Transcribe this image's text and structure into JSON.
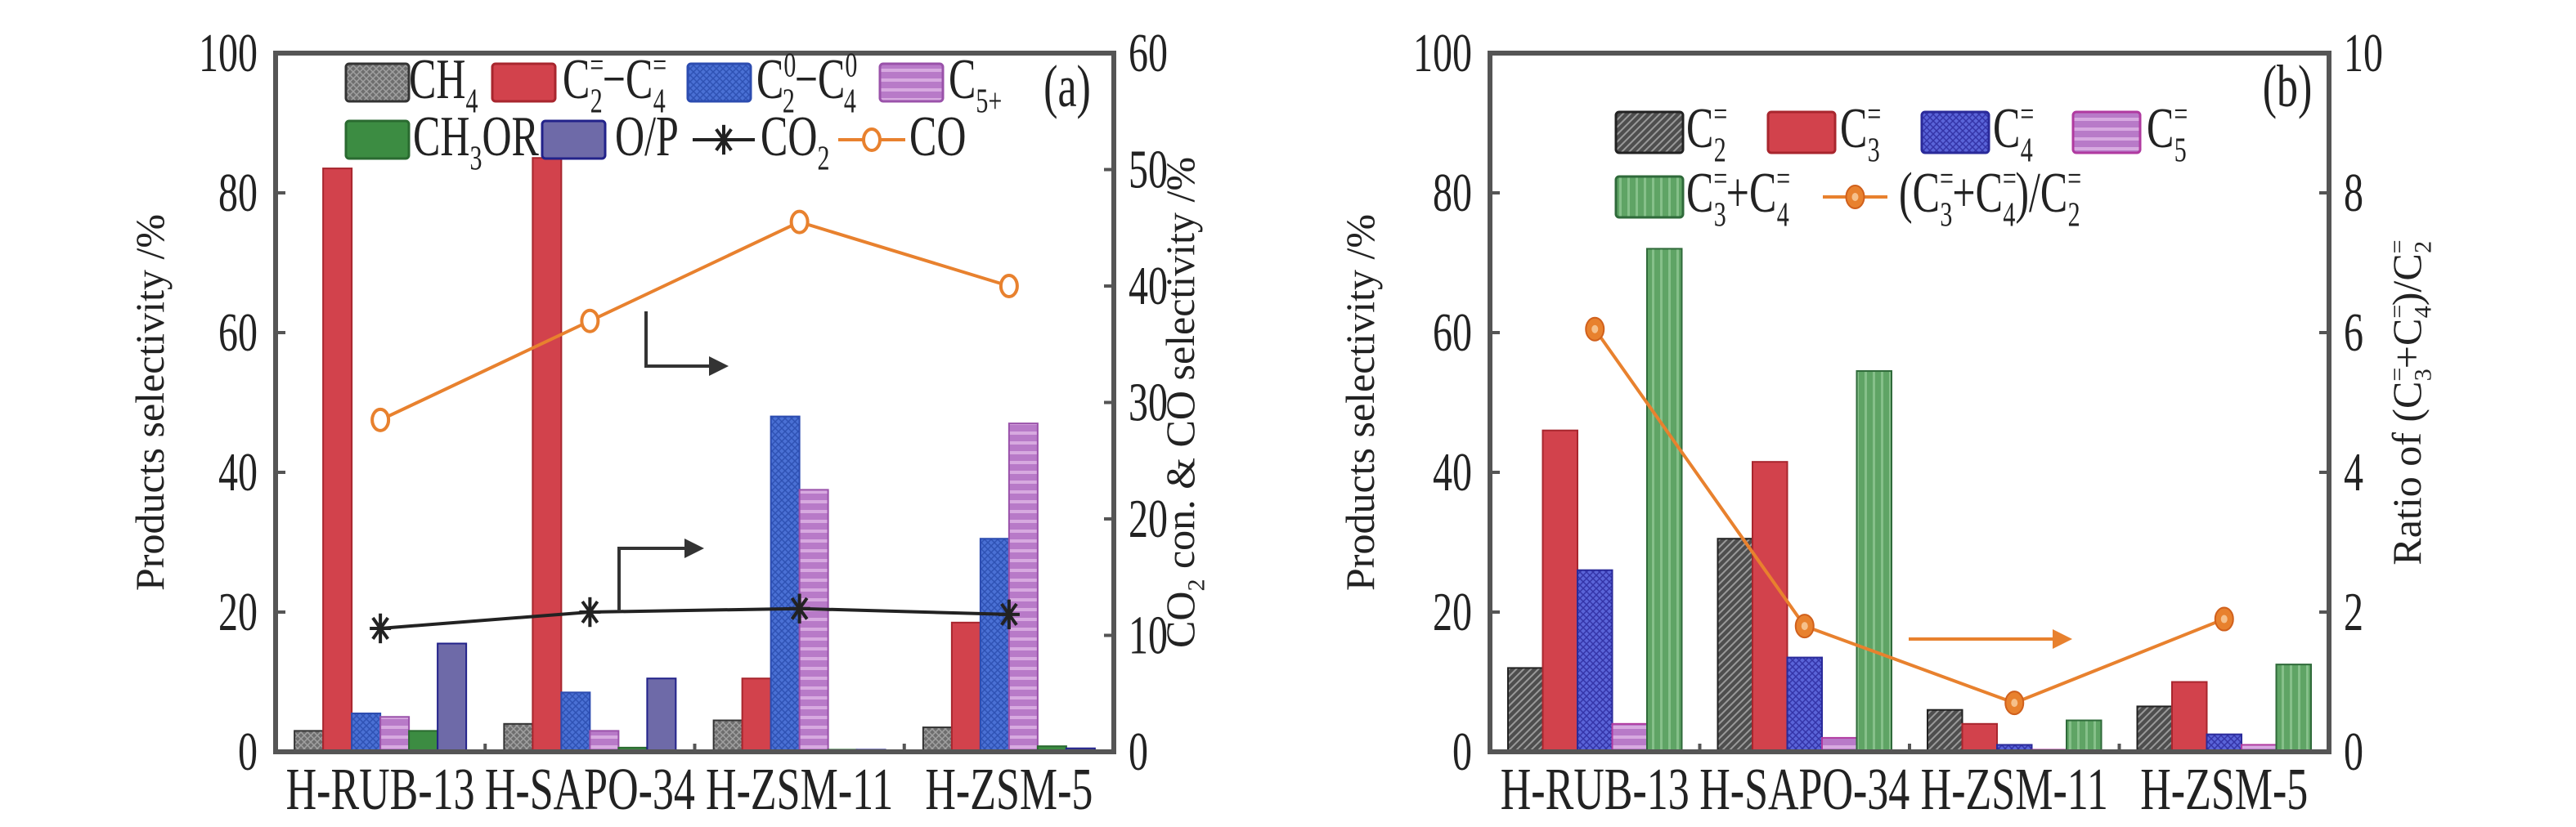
{
  "chart_data": [
    {
      "id": "a",
      "type": "bar",
      "panel_label": "(a)",
      "categories": [
        "H-RUB-13",
        "H-SAPO-34",
        "H-ZSM-11",
        "H-ZSM-5"
      ],
      "ylabel_left": [
        "Products selectivity /%"
      ],
      "ylabel_right": [
        "CO",
        {
          "sub": "2"
        },
        " con. & CO selectivity /%"
      ],
      "ylim_left": [
        0,
        100
      ],
      "yticks_left": [
        0,
        20,
        40,
        60,
        80,
        100
      ],
      "ylim_right": [
        0,
        60
      ],
      "yticks_right": [
        0,
        10,
        20,
        30,
        40,
        50,
        60
      ],
      "grid": false,
      "legend_placement": "top",
      "bar_series": [
        {
          "name": "CH4",
          "legend": [
            "CH",
            {
              "sub": "4"
            }
          ],
          "fill": "pat-gray-cross",
          "stroke": "#333333",
          "values": [
            3,
            4,
            4.5,
            3.5
          ]
        },
        {
          "name": "C2=-C4=",
          "legend": [
            "C",
            {
              "sub": "2",
              "sup": "="
            },
            "−C",
            {
              "sub": "4",
              "sup": "="
            }
          ],
          "fill": "#d2424c",
          "stroke": "#a8262e",
          "values": [
            83.5,
            85,
            10.5,
            18.5
          ]
        },
        {
          "name": "C2o-C4o",
          "legend": [
            "C",
            {
              "sub": "2",
              "sup": "0"
            },
            "−C",
            {
              "sub": "4",
              "sup": "0"
            }
          ],
          "fill": "pat-blue-cross",
          "stroke": "#2c4cb0",
          "values": [
            5.5,
            8.5,
            48,
            30.5
          ]
        },
        {
          "name": "C5+",
          "legend": [
            "C",
            {
              "sub": "5+"
            }
          ],
          "fill": "pat-purple-h",
          "stroke": "#9a52aa",
          "values": [
            5,
            3,
            37.5,
            47
          ]
        },
        {
          "name": "CH3OR",
          "legend": [
            "CH",
            {
              "sub": "3"
            },
            "OR"
          ],
          "fill": "#3c8c42",
          "stroke": "#2a6a30",
          "values": [
            3,
            0.6,
            0.3,
            0.8
          ]
        },
        {
          "name": "O/P",
          "legend": [
            "O/P"
          ],
          "fill": "#6e6aa8",
          "stroke": "#22228a",
          "values": [
            15.5,
            10.5,
            0.3,
            0.5
          ]
        }
      ],
      "line_series": [
        {
          "name": "CO2",
          "legend": [
            "CO",
            {
              "sub": "2"
            }
          ],
          "axis": "right",
          "color": "#222222",
          "marker": "asterisk",
          "values": [
            10.6,
            12,
            12.3,
            11.8
          ]
        },
        {
          "name": "CO",
          "legend": [
            "CO"
          ],
          "axis": "right",
          "color": "#e8812e",
          "marker": "open-circle",
          "values": [
            28.5,
            37,
            45.5,
            40
          ]
        }
      ]
    },
    {
      "id": "b",
      "type": "bar",
      "panel_label": "(b)",
      "categories": [
        "H-RUB-13",
        "H-SAPO-34",
        "H-ZSM-11",
        "H-ZSM-5"
      ],
      "ylabel_left": [
        "Products selectivity /%"
      ],
      "ylabel_right": [
        "Ratio of (C",
        {
          "sub": "3",
          "sup": "="
        },
        "+C",
        {
          "sub": "4",
          "sup": "="
        },
        ")/C",
        {
          "sub": "2",
          "sup": "="
        }
      ],
      "ylim_left": [
        0,
        100
      ],
      "yticks_left": [
        0,
        20,
        40,
        60,
        80,
        100
      ],
      "ylim_right": [
        0,
        10
      ],
      "yticks_right": [
        0,
        2,
        4,
        6,
        8,
        10
      ],
      "grid": false,
      "legend_placement": "top",
      "bar_series": [
        {
          "name": "C2=",
          "legend": [
            "C",
            {
              "sub": "2",
              "sup": "="
            }
          ],
          "fill": "pat-gray-diag",
          "stroke": "#222222",
          "values": [
            12,
            30.5,
            6,
            6.5
          ]
        },
        {
          "name": "C3=",
          "legend": [
            "C",
            {
              "sub": "3",
              "sup": "="
            }
          ],
          "fill": "#d2424c",
          "stroke": "#a8262e",
          "values": [
            46,
            41.5,
            4,
            10
          ]
        },
        {
          "name": "C4=",
          "legend": [
            "C",
            {
              "sub": "4",
              "sup": "="
            }
          ],
          "fill": "pat-blue2-cross",
          "stroke": "#2a2a9a",
          "values": [
            26,
            13.5,
            1,
            2.5
          ]
        },
        {
          "name": "C5=",
          "legend": [
            "C",
            {
              "sub": "5",
              "sup": "="
            }
          ],
          "fill": "pat-purple-h",
          "stroke": "#b03aa0",
          "values": [
            4,
            2,
            0.3,
            1
          ]
        },
        {
          "name": "C3=+C4=",
          "legend": [
            "C",
            {
              "sub": "3",
              "sup": "="
            },
            "+C",
            {
              "sub": "4",
              "sup": "="
            }
          ],
          "fill": "pat-green-v",
          "stroke": "#2f6a3a",
          "values": [
            72,
            54.5,
            4.5,
            12.5
          ]
        }
      ],
      "line_series": [
        {
          "name": "(C3=+C4=)/C2=",
          "legend": [
            "(C",
            {
              "sub": "3",
              "sup": "="
            },
            "+C",
            {
              "sub": "4",
              "sup": "="
            },
            ")/C",
            {
              "sub": "2",
              "sup": "="
            }
          ],
          "axis": "right",
          "color": "#e8812e",
          "marker": "filled-circle",
          "values": [
            6.05,
            1.8,
            0.7,
            1.9
          ]
        }
      ]
    }
  ]
}
